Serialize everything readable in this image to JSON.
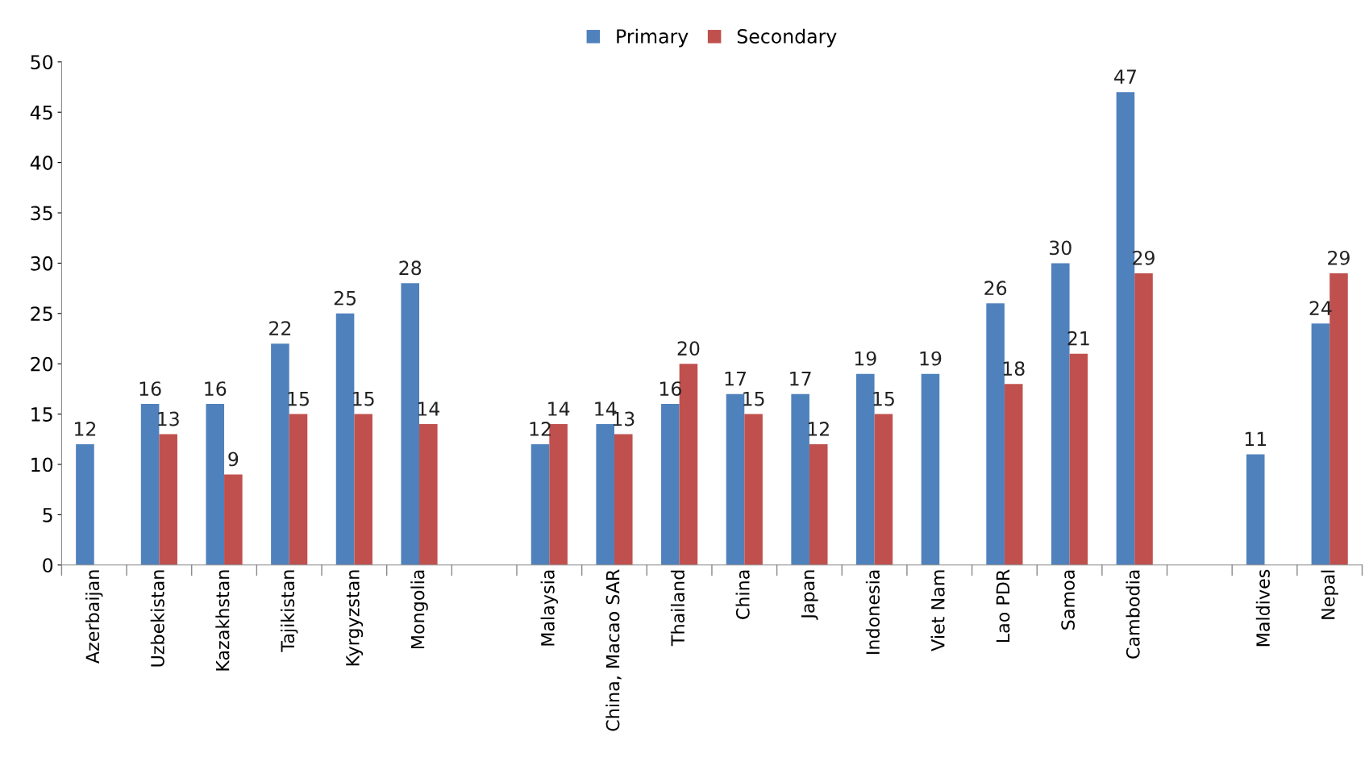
{
  "chart_data": {
    "type": "bar",
    "categories": [
      "Azerbaijan",
      "Uzbekistan",
      "Kazakhstan",
      "Tajikistan",
      "Kyrgyzstan",
      "Mongolia",
      null,
      "Malaysia",
      "China, Macao SAR",
      "Thailand",
      "China",
      "Japan",
      "Indonesia",
      "Viet Nam",
      "Lao PDR",
      "Samoa",
      "Cambodia",
      null,
      "Maldives",
      "Nepal"
    ],
    "series": [
      {
        "name": "Primary",
        "color": "#4f81bd",
        "values": [
          12,
          16,
          16,
          22,
          25,
          28,
          null,
          12,
          14,
          16,
          17,
          17,
          19,
          19,
          26,
          30,
          47,
          null,
          11,
          24
        ]
      },
      {
        "name": "Secondary",
        "color": "#c0504d",
        "values": [
          null,
          13,
          9,
          15,
          15,
          14,
          null,
          14,
          13,
          20,
          15,
          12,
          15,
          null,
          18,
          21,
          29,
          null,
          null,
          29
        ]
      }
    ],
    "ylim": [
      0,
      50
    ],
    "yticks": [
      0,
      5,
      10,
      15,
      20,
      25,
      30,
      35,
      40,
      45,
      50
    ],
    "data_labels": true,
    "legend": "top",
    "grid": false
  }
}
